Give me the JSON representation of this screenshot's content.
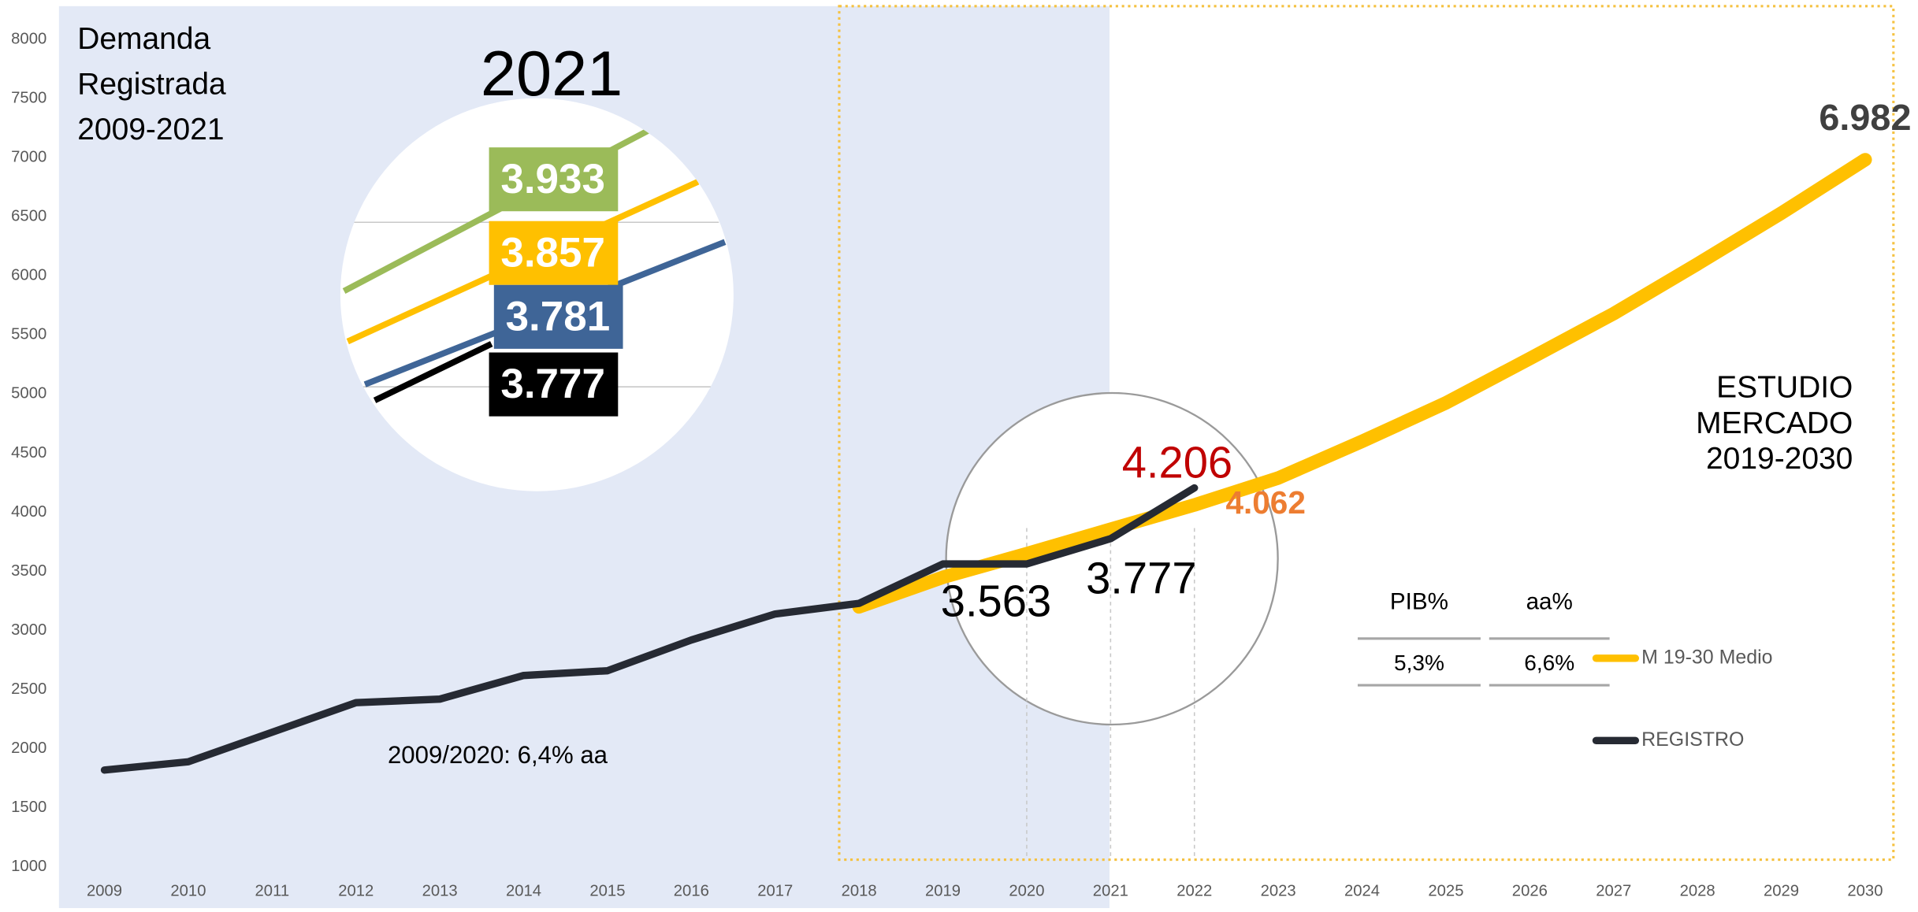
{
  "chart_data": {
    "type": "line",
    "x": [
      2009,
      2010,
      2011,
      2012,
      2013,
      2014,
      2015,
      2016,
      2017,
      2018,
      2019,
      2020,
      2021,
      2022,
      2023,
      2024,
      2025,
      2026,
      2027,
      2028,
      2029,
      2030
    ],
    "xlim": [
      2009,
      2030
    ],
    "xticks": [
      2009,
      2010,
      2011,
      2012,
      2013,
      2014,
      2015,
      2016,
      2017,
      2018,
      2019,
      2020,
      2021,
      2022,
      2023,
      2024,
      2025,
      2026,
      2027,
      2028,
      2029,
      2030
    ],
    "ylim": [
      1000,
      8000
    ],
    "yticks": [
      1000,
      1500,
      2000,
      2500,
      3000,
      3500,
      4000,
      4500,
      5000,
      5500,
      6000,
      6500,
      7000,
      7500,
      8000
    ],
    "series": [
      {
        "name": "M 19-30 Medio",
        "color": "#ffc000",
        "values": [
          null,
          null,
          null,
          null,
          null,
          null,
          null,
          null,
          null,
          3200,
          3450,
          3650,
          3857,
          4062,
          4290,
          4600,
          4925,
          5300,
          5680,
          6100,
          6530,
          6982
        ],
        "value_labels": [
          null,
          null,
          null,
          null,
          null,
          null,
          null,
          null,
          null,
          null,
          null,
          null,
          null,
          "4.062",
          null,
          null,
          null,
          null,
          null,
          null,
          null,
          "6.982"
        ]
      },
      {
        "name": "REGISTRO",
        "color": "#262a33",
        "values": [
          1820,
          1890,
          2140,
          2390,
          2420,
          2620,
          2660,
          2920,
          3140,
          3230,
          3563,
          3563,
          3777,
          4206,
          null,
          null,
          null,
          null,
          null,
          null,
          null,
          null
        ],
        "value_labels": [
          null,
          null,
          null,
          null,
          null,
          null,
          null,
          null,
          null,
          null,
          null,
          "3.563",
          "3.777",
          "4.206",
          null,
          null,
          null,
          null,
          null,
          null,
          null,
          null
        ]
      }
    ],
    "annotations": {
      "left_title": [
        "Demanda",
        "Registrada",
        "2009-2021"
      ],
      "right_title": [
        "ESTUDIO",
        "MERCADO",
        "2019-2030"
      ],
      "growth": "2009/2020: 6,4% aa"
    },
    "table": {
      "headers": [
        "PIB%",
        "aa%"
      ],
      "row": [
        "5,3%",
        "6,6%"
      ]
    },
    "inset": {
      "title": "2021",
      "values": [
        3933,
        3857,
        3781,
        3777
      ],
      "value_labels": [
        "3.933",
        "3.857",
        "3.781",
        "3.777"
      ],
      "colors": [
        "#9bbb59",
        "#ffc000",
        "#3f6597",
        "#000000"
      ]
    }
  }
}
